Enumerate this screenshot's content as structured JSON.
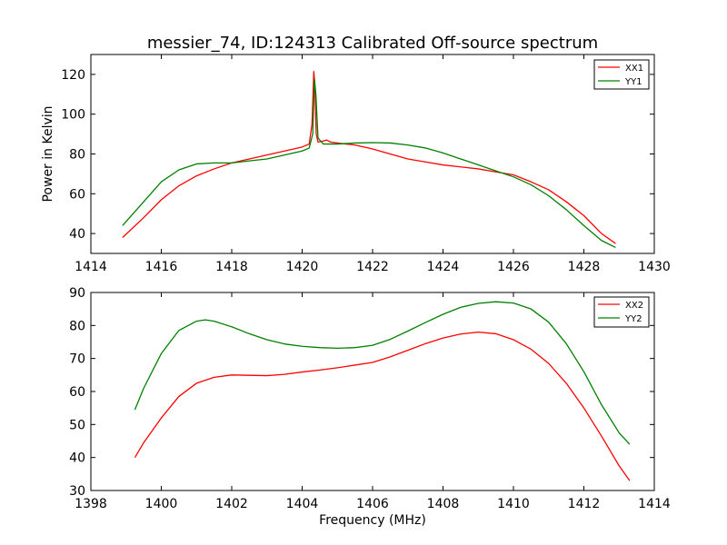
{
  "figure": {
    "title": "messier_74, ID:124313 Calibrated Off-source spectrum"
  },
  "chart_data": [
    {
      "type": "line",
      "title": "messier_74, ID:124313 Calibrated Off-source spectrum",
      "xlabel": "",
      "ylabel": "Power in Kelvin",
      "xlim": [
        1414,
        1430
      ],
      "ylim": [
        30,
        130
      ],
      "xticks": [
        "1414",
        "1416",
        "1418",
        "1420",
        "1422",
        "1424",
        "1426",
        "1428",
        "1430"
      ],
      "yticks": [
        "40",
        "60",
        "80",
        "100",
        "120"
      ],
      "grid": false,
      "legend": "top-right",
      "series": [
        {
          "name": "XX1",
          "color": "#ff0000",
          "x": [
            1414.9,
            1415.5,
            1416.0,
            1416.5,
            1417.0,
            1417.5,
            1418.0,
            1418.5,
            1419.0,
            1419.5,
            1420.0,
            1420.2,
            1420.28,
            1420.33,
            1420.36,
            1420.4,
            1420.45,
            1420.6,
            1420.7,
            1420.8,
            1421.0,
            1421.5,
            1422.0,
            1422.5,
            1423.0,
            1423.5,
            1424.0,
            1424.5,
            1425.0,
            1425.5,
            1426.0,
            1426.5,
            1427.0,
            1427.5,
            1428.0,
            1428.5,
            1428.9
          ],
          "y": [
            38,
            48,
            57,
            64,
            69,
            72.5,
            75.5,
            77.5,
            79.5,
            81.5,
            83.5,
            85,
            95,
            121.5,
            115,
            90,
            86,
            86.5,
            87,
            86,
            85.5,
            84.5,
            82.5,
            80,
            77.5,
            76,
            74.5,
            73.5,
            72.5,
            71,
            69.5,
            66,
            62,
            56,
            49,
            40,
            35
          ]
        },
        {
          "name": "YY1",
          "color": "#008000",
          "x": [
            1414.9,
            1415.5,
            1416.0,
            1416.5,
            1417.0,
            1417.5,
            1418.0,
            1418.5,
            1419.0,
            1419.5,
            1420.0,
            1420.2,
            1420.3,
            1420.35,
            1420.39,
            1420.45,
            1420.6,
            1421.0,
            1421.5,
            1422.0,
            1422.5,
            1423.0,
            1423.5,
            1424.0,
            1424.5,
            1425.0,
            1425.5,
            1426.0,
            1426.5,
            1427.0,
            1427.5,
            1428.0,
            1428.5,
            1428.9
          ],
          "y": [
            44,
            56,
            66,
            72,
            75,
            75.5,
            75.5,
            76.5,
            77.5,
            79.5,
            81.5,
            83,
            90,
            117.5,
            110,
            88,
            85,
            85,
            85.5,
            85.7,
            85.5,
            84.5,
            83,
            80.5,
            77.5,
            74.5,
            71.5,
            68.5,
            64.5,
            59,
            52,
            44,
            36.5,
            33
          ]
        }
      ]
    },
    {
      "type": "line",
      "title": "",
      "xlabel": "Frequency (MHz)",
      "ylabel": "",
      "xlim": [
        1398,
        1414
      ],
      "ylim": [
        30,
        90
      ],
      "xticks": [
        "1398",
        "1400",
        "1402",
        "1404",
        "1406",
        "1408",
        "1410",
        "1412",
        "1414"
      ],
      "yticks": [
        "30",
        "40",
        "50",
        "60",
        "70",
        "80",
        "90"
      ],
      "grid": false,
      "legend": "top-right",
      "series": [
        {
          "name": "XX2",
          "color": "#ff0000",
          "x": [
            1399.25,
            1399.5,
            1400.0,
            1400.5,
            1401.0,
            1401.5,
            1402.0,
            1402.5,
            1403.0,
            1403.5,
            1404.0,
            1404.5,
            1405.0,
            1405.5,
            1406.0,
            1406.5,
            1407.0,
            1407.5,
            1408.0,
            1408.5,
            1409.0,
            1409.5,
            1410.0,
            1410.5,
            1411.0,
            1411.5,
            1412.0,
            1412.5,
            1413.0,
            1413.3
          ],
          "y": [
            40,
            44.5,
            52,
            58.5,
            62.5,
            64.3,
            65,
            64.9,
            64.8,
            65.2,
            65.9,
            66.5,
            67.2,
            68,
            68.8,
            70.5,
            72.5,
            74.5,
            76.2,
            77.4,
            78,
            77.5,
            75.7,
            72.8,
            68.5,
            62.5,
            55,
            46.5,
            37.5,
            33
          ]
        },
        {
          "name": "YY2",
          "color": "#008000",
          "x": [
            1399.25,
            1399.5,
            1400.0,
            1400.5,
            1401.0,
            1401.25,
            1401.5,
            1402.0,
            1402.5,
            1403.0,
            1403.5,
            1404.0,
            1404.5,
            1405.0,
            1405.5,
            1406.0,
            1406.5,
            1407.0,
            1407.5,
            1408.0,
            1408.5,
            1409.0,
            1409.5,
            1410.0,
            1410.5,
            1411.0,
            1411.5,
            1412.0,
            1412.5,
            1413.0,
            1413.3
          ],
          "y": [
            54.5,
            61,
            71.5,
            78.5,
            81.3,
            81.7,
            81.3,
            79.6,
            77.5,
            75.7,
            74.4,
            73.7,
            73.3,
            73.1,
            73.3,
            74,
            75.8,
            78.3,
            80.9,
            83.4,
            85.5,
            86.7,
            87.2,
            86.8,
            85,
            81,
            74.5,
            66,
            56,
            47.5,
            44
          ]
        }
      ]
    }
  ]
}
